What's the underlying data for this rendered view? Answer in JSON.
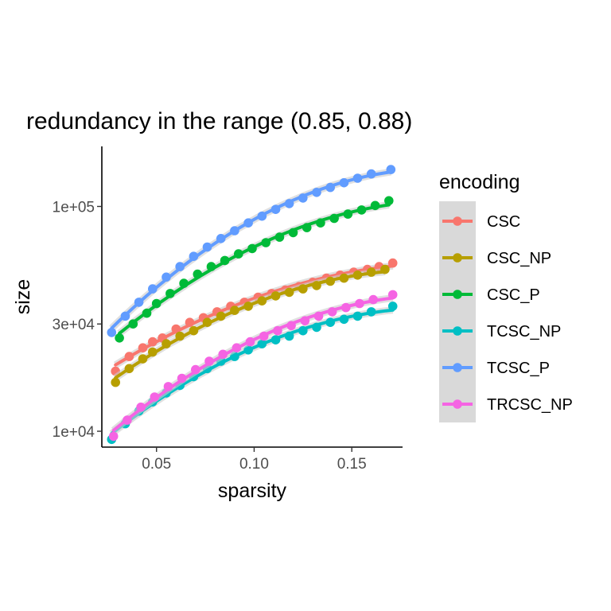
{
  "chart_data": {
    "type": "scatter",
    "title": "redundancy in the range (0.85, 0.88)",
    "xlabel": "sparsity",
    "ylabel": "size",
    "y_scale": "log10",
    "xlim": [
      0.022,
      0.176
    ],
    "ylim": [
      8500,
      185000
    ],
    "x_ticks": [
      0.05,
      0.1,
      0.15
    ],
    "x_tick_labels": [
      "0.05",
      "0.10",
      "0.15"
    ],
    "y_ticks": [
      10000,
      30000,
      100000
    ],
    "y_tick_labels": [
      "1e+04",
      "3e+04",
      "1e+05"
    ],
    "grid": false,
    "legend_title": "encoding",
    "legend_position": "right",
    "series": [
      {
        "name": "CSC",
        "color": "#F8766D",
        "x": [
          0.029,
          0.036,
          0.043,
          0.048,
          0.053,
          0.06,
          0.067,
          0.074,
          0.081,
          0.088,
          0.095,
          0.102,
          0.109,
          0.116,
          0.123,
          0.13,
          0.137,
          0.144,
          0.151,
          0.158,
          0.164,
          0.171
        ],
        "y": [
          18500,
          21500,
          23500,
          25000,
          26000,
          28500,
          30500,
          32000,
          34000,
          36000,
          37500,
          39500,
          41000,
          42500,
          44000,
          46000,
          48000,
          49500,
          51000,
          52500,
          54000,
          56000
        ]
      },
      {
        "name": "CSC_NP",
        "color": "#B79F00",
        "x": [
          0.029,
          0.036,
          0.043,
          0.048,
          0.055,
          0.062,
          0.069,
          0.076,
          0.083,
          0.09,
          0.097,
          0.104,
          0.111,
          0.118,
          0.125,
          0.132,
          0.139,
          0.146,
          0.153,
          0.16,
          0.167
        ],
        "y": [
          16500,
          19000,
          21000,
          22500,
          24500,
          26500,
          28000,
          30500,
          32500,
          34500,
          36000,
          38000,
          40000,
          41500,
          43000,
          44500,
          46500,
          48000,
          49500,
          51000,
          52500
        ]
      },
      {
        "name": "CSC_P",
        "color": "#00BA38",
        "x": [
          0.031,
          0.038,
          0.045,
          0.05,
          0.057,
          0.064,
          0.071,
          0.078,
          0.085,
          0.092,
          0.099,
          0.106,
          0.113,
          0.12,
          0.127,
          0.134,
          0.141,
          0.148,
          0.155,
          0.162,
          0.169
        ],
        "y": [
          26000,
          30000,
          33500,
          37000,
          41000,
          45500,
          50000,
          54000,
          57500,
          61500,
          65000,
          69000,
          73000,
          76500,
          80500,
          84500,
          88500,
          92500,
          96500,
          101000,
          106000
        ]
      },
      {
        "name": "TCSC_NP",
        "color": "#00BFC4",
        "x": [
          0.027,
          0.034,
          0.041,
          0.048,
          0.055,
          0.062,
          0.069,
          0.076,
          0.083,
          0.09,
          0.097,
          0.104,
          0.111,
          0.118,
          0.125,
          0.132,
          0.139,
          0.146,
          0.153,
          0.16,
          0.171
        ],
        "y": [
          9200,
          10800,
          12300,
          13500,
          14800,
          16000,
          17500,
          19000,
          20500,
          21500,
          23000,
          24500,
          25500,
          26500,
          28000,
          29000,
          30500,
          31500,
          32500,
          34000,
          36000
        ]
      },
      {
        "name": "TCSC_P",
        "color": "#619CFF",
        "x": [
          0.027,
          0.034,
          0.041,
          0.048,
          0.055,
          0.062,
          0.069,
          0.076,
          0.083,
          0.09,
          0.097,
          0.104,
          0.111,
          0.118,
          0.125,
          0.132,
          0.139,
          0.146,
          0.153,
          0.16,
          0.17
        ],
        "y": [
          27500,
          32500,
          37500,
          43000,
          48500,
          54000,
          60000,
          66000,
          72000,
          78000,
          84500,
          90500,
          97000,
          103000,
          109000,
          115500,
          121500,
          127500,
          133500,
          139500,
          146000
        ]
      },
      {
        "name": "TRCSC_NP",
        "color": "#F564E3",
        "x": [
          0.028,
          0.035,
          0.042,
          0.049,
          0.056,
          0.063,
          0.07,
          0.077,
          0.084,
          0.091,
          0.098,
          0.105,
          0.112,
          0.119,
          0.126,
          0.133,
          0.14,
          0.147,
          0.154,
          0.161,
          0.171
        ],
        "y": [
          9500,
          11200,
          12800,
          14200,
          15800,
          17200,
          18800,
          20500,
          22000,
          23500,
          25000,
          26500,
          28000,
          29500,
          31000,
          32500,
          34000,
          35500,
          37000,
          38500,
          40500
        ]
      }
    ]
  }
}
